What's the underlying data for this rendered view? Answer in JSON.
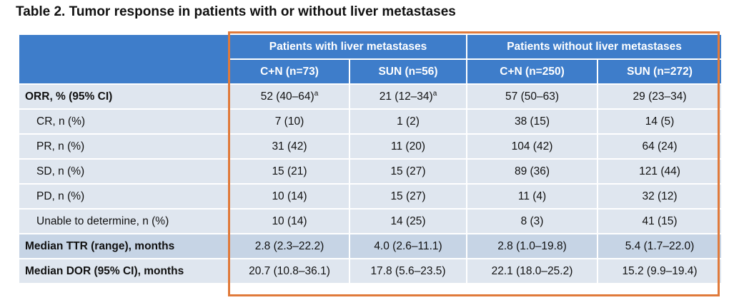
{
  "title": "Table 2. Tumor response in patients with or without liver metastases",
  "table": {
    "groups": [
      "Patients with liver metastases",
      "Patients without liver metastases"
    ],
    "columns": [
      "C+N (n=73)",
      "SUN (n=56)",
      "C+N (n=250)",
      "SUN (n=272)"
    ],
    "rows": [
      {
        "label": "ORR, % (95% CI)",
        "bold": true,
        "cells": [
          {
            "text": "52 (40–64)",
            "sup": "a"
          },
          {
            "text": "21 (12–34)",
            "sup": "a"
          },
          {
            "text": "57 (50–63)"
          },
          {
            "text": "29 (23–34)"
          }
        ]
      },
      {
        "label": "CR, n (%)",
        "indent": true,
        "cells": [
          {
            "text": "7 (10)"
          },
          {
            "text": "1 (2)"
          },
          {
            "text": "38 (15)"
          },
          {
            "text": "14 (5)"
          }
        ]
      },
      {
        "label": "PR, n (%)",
        "indent": true,
        "cells": [
          {
            "text": "31 (42)"
          },
          {
            "text": "11 (20)"
          },
          {
            "text": "104 (42)"
          },
          {
            "text": "64 (24)"
          }
        ]
      },
      {
        "label": "SD, n (%)",
        "indent": true,
        "cells": [
          {
            "text": "15 (21)"
          },
          {
            "text": "15 (27)"
          },
          {
            "text": "89 (36)"
          },
          {
            "text": "121 (44)"
          }
        ]
      },
      {
        "label": "PD, n (%)",
        "indent": true,
        "cells": [
          {
            "text": "10 (14)"
          },
          {
            "text": "15 (27)"
          },
          {
            "text": "11 (4)"
          },
          {
            "text": "32 (12)"
          }
        ]
      },
      {
        "label": "Unable to determine, n (%)",
        "indent": true,
        "cells": [
          {
            "text": "10 (14)"
          },
          {
            "text": "14 (25)"
          },
          {
            "text": "8 (3)"
          },
          {
            "text": "41 (15)"
          }
        ]
      },
      {
        "label": "Median TTR (range), months",
        "bold": true,
        "dark": true,
        "cells": [
          {
            "text": "2.8 (2.3–22.2)"
          },
          {
            "text": "4.0 (2.6–11.1)"
          },
          {
            "text": "2.8 (1.0–19.8)"
          },
          {
            "text": "5.4 (1.7–22.0)"
          }
        ]
      },
      {
        "label": "Median DOR (95% CI), months",
        "bold": true,
        "cells": [
          {
            "text": "20.7 (10.8–36.1)"
          },
          {
            "text": "17.8 (5.6–23.5)"
          },
          {
            "text": "22.1 (18.0–25.2)"
          },
          {
            "text": "15.2 (9.9–19.4)"
          }
        ]
      }
    ]
  }
}
